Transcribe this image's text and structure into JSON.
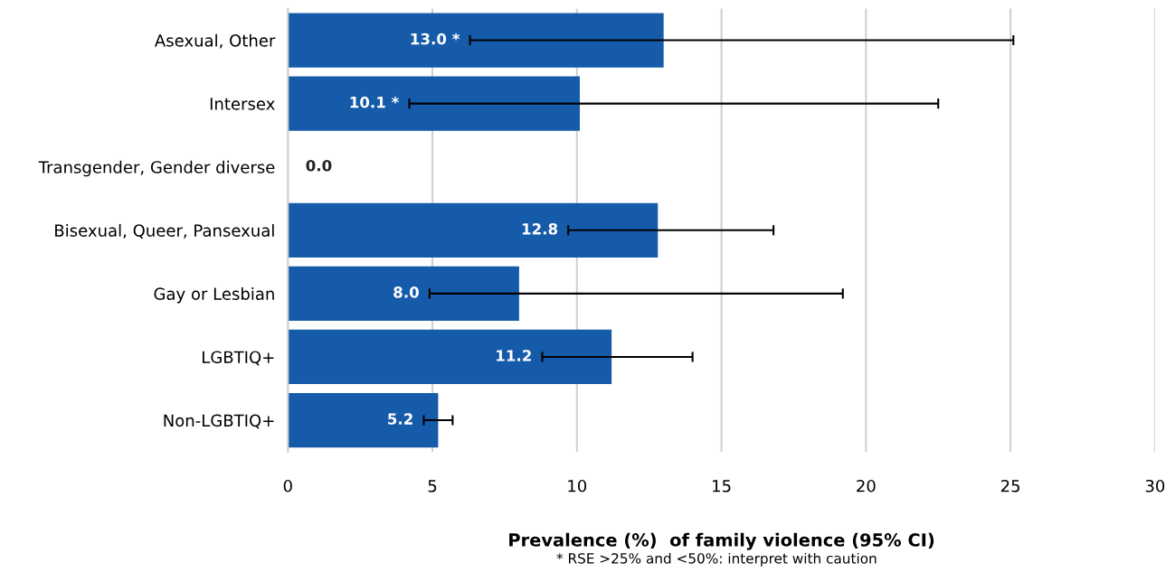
{
  "chart_data": {
    "type": "bar",
    "orientation": "horizontal",
    "categories": [
      "Asexual, Other",
      "Intersex",
      "Transgender, Gender diverse",
      "Bisexual, Queer, Pansexual",
      "Gay or Lesbian",
      "LGBTIQ+",
      "Non-LGBTIQ+"
    ],
    "values": [
      13.0,
      10.1,
      0.0,
      12.8,
      8.0,
      11.2,
      5.2
    ],
    "errors": [
      [
        6.3,
        25.1
      ],
      [
        4.2,
        22.5
      ],
      null,
      [
        9.7,
        16.8
      ],
      [
        4.9,
        19.2
      ],
      [
        8.8,
        14.0
      ],
      [
        4.7,
        5.7
      ]
    ],
    "value_labels": [
      "13.0 *",
      "10.1 *",
      "0.0",
      "12.8",
      "8.0",
      "11.2",
      "5.2"
    ],
    "color": "#165baa",
    "xlim": [
      0,
      30
    ],
    "xticks": [
      0,
      5,
      10,
      15,
      20,
      25,
      30
    ],
    "grid": "x",
    "xlabel": "Prevalence (%)  of family violence (95% CI)",
    "annotations": [
      "* RSE >25% and <50%: interpret with caution"
    ]
  }
}
